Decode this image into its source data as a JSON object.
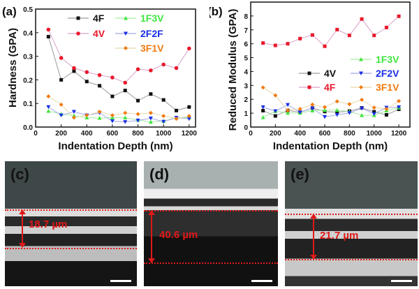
{
  "chart_data": [
    {
      "type": "line",
      "panel_label": "(a)",
      "xlabel": "Indentation Depth (nm)",
      "ylabel": "Hardness (GPA)",
      "xlim": [
        0,
        1250
      ],
      "ylim": [
        0,
        0.5
      ],
      "xticks": [
        0,
        200,
        400,
        600,
        800,
        1000,
        1200
      ],
      "yticks": [
        0.0,
        0.1,
        0.2,
        0.3,
        0.4,
        0.5
      ],
      "ytick_labels": [
        "0.0",
        "0.1",
        "0.2",
        "0.3",
        "0.4",
        "0.5"
      ],
      "x": [
        100,
        200,
        300,
        400,
        500,
        600,
        700,
        800,
        900,
        1000,
        1100,
        1200
      ],
      "legend_placement": "top",
      "series": [
        {
          "name": "4F",
          "marker": "square",
          "color": "#111111",
          "line": "#9a9a9a",
          "values": [
            0.383,
            0.2,
            0.237,
            0.193,
            0.175,
            0.13,
            0.155,
            0.112,
            0.14,
            0.115,
            0.07,
            0.085
          ]
        },
        {
          "name": "4V",
          "marker": "circle",
          "color": "#e8192c",
          "line": "#d9a0c8",
          "values": [
            0.413,
            0.293,
            0.25,
            0.233,
            0.22,
            0.21,
            0.188,
            0.245,
            0.24,
            0.265,
            0.25,
            0.333
          ]
        },
        {
          "name": "1F3V",
          "marker": "triangle-up",
          "color": "#3ee63e",
          "line": "#a8eda0",
          "values": [
            0.068,
            0.055,
            0.048,
            0.04,
            0.038,
            0.04,
            0.04,
            0.03,
            0.022,
            0.025,
            0.04,
            0.04
          ]
        },
        {
          "name": "2F2F",
          "marker": "triangle-down",
          "color": "#1a2ee8",
          "line": "#a0a8e8",
          "values": [
            0.085,
            0.05,
            0.065,
            0.05,
            0.06,
            0.025,
            0.022,
            0.028,
            0.037,
            0.023,
            0.04,
            0.035
          ]
        },
        {
          "name": "3F1V",
          "marker": "diamond",
          "color": "#f07a10",
          "line": "#e8d8a8",
          "values": [
            0.13,
            0.095,
            0.04,
            0.05,
            0.065,
            0.05,
            0.06,
            0.055,
            0.06,
            0.047,
            0.035,
            0.047
          ]
        }
      ]
    },
    {
      "type": "line",
      "panel_label": "(b)",
      "xlabel": "Indentation Depth (nm)",
      "ylabel": "Reduced Modulus (GPA)",
      "xlim": [
        0,
        1290
      ],
      "ylim": [
        0,
        9
      ],
      "xticks": [
        0,
        200,
        400,
        600,
        800,
        1000,
        1200
      ],
      "yticks": [
        0,
        1,
        2,
        3,
        4,
        5,
        6,
        7,
        8
      ],
      "ytick_labels": [
        "0",
        "1",
        "2",
        "3",
        "4",
        "5",
        "6",
        "7",
        "8"
      ],
      "x": [
        100,
        200,
        300,
        400,
        500,
        600,
        700,
        800,
        900,
        1000,
        1100,
        1200
      ],
      "legend_placement": "center-right",
      "series": [
        {
          "name": "4V",
          "marker": "square",
          "color": "#111111",
          "line": "#9a9a9a",
          "values": [
            1.18,
            0.8,
            1.2,
            1.07,
            1.37,
            1.12,
            1.07,
            1.15,
            1.38,
            1.1,
            0.88,
            1.28
          ]
        },
        {
          "name": "4F",
          "marker": "square",
          "color": "#e8192c",
          "line": "#d9a0c8",
          "values": [
            6.05,
            5.88,
            6.0,
            6.37,
            6.63,
            5.82,
            7.02,
            6.6,
            7.78,
            6.6,
            7.17,
            7.98
          ]
        },
        {
          "name": "1F3V",
          "marker": "triangle-up",
          "color": "#3ee63e",
          "line": "#a8eda0",
          "values": [
            0.7,
            1.15,
            1.02,
            1.02,
            1.18,
            1.22,
            1.22,
            1.12,
            0.85,
            0.85,
            1.18,
            1.38
          ]
        },
        {
          "name": "2F2V",
          "marker": "triangle-down",
          "color": "#1a2ee8",
          "line": "#a0a8e8",
          "values": [
            1.43,
            1.15,
            1.6,
            1.07,
            1.35,
            0.73,
            0.88,
            1.02,
            1.35,
            0.95,
            1.4,
            1.43
          ]
        },
        {
          "name": "3F1V",
          "marker": "diamond",
          "color": "#f07a10",
          "line": "#e8d8a8",
          "values": [
            2.85,
            2.28,
            1.2,
            1.3,
            1.62,
            1.43,
            1.85,
            1.65,
            1.97,
            1.4,
            1.3,
            1.87
          ]
        }
      ]
    }
  ],
  "sem_panels": [
    {
      "label": "(c)",
      "thickness": "18.7 µm"
    },
    {
      "label": "(d)",
      "thickness": "40.6 µm"
    },
    {
      "label": "(e)",
      "thickness": "21.7 µm"
    }
  ]
}
